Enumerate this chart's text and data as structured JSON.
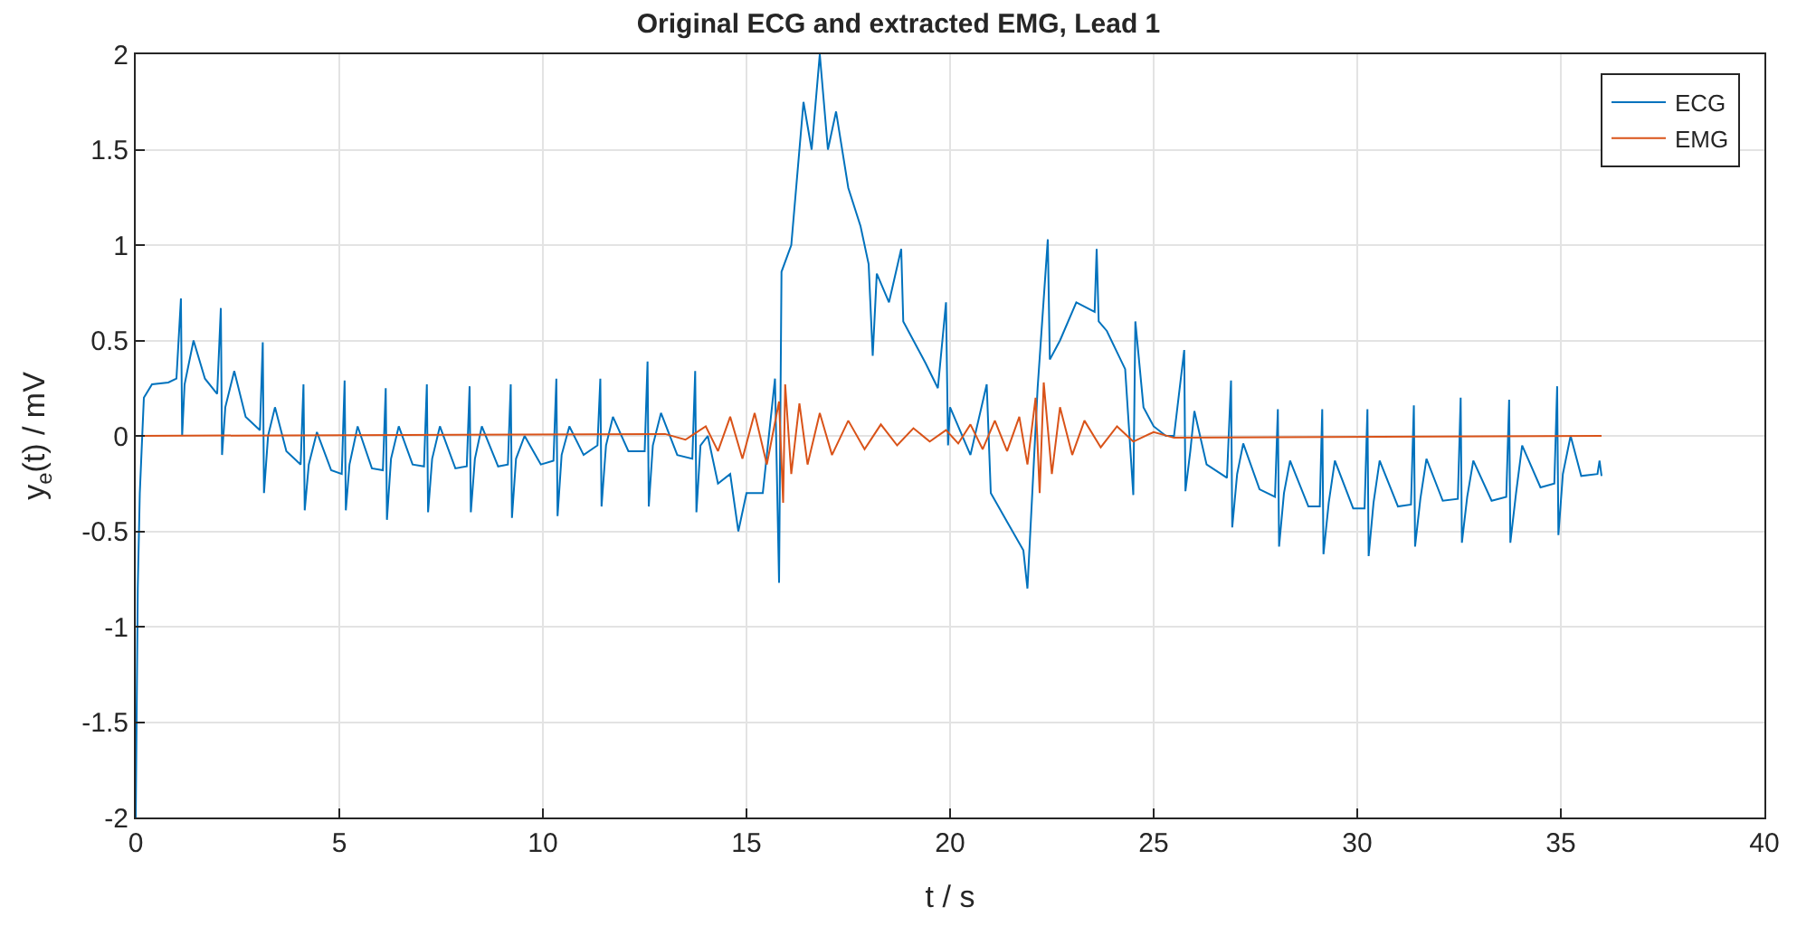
{
  "chart_data": {
    "type": "line",
    "title": "Original ECG and extracted EMG, Lead 1",
    "xlabel": "t / s",
    "ylabel": "y$_{e}$(t) / mV",
    "xlim": [
      0,
      40
    ],
    "xticks": [
      0,
      5,
      10,
      15,
      20,
      25,
      30,
      35,
      40
    ],
    "ylim": [
      -2,
      2
    ],
    "yticks": [
      -2,
      -1.5,
      -1,
      -0.5,
      0,
      0.5,
      1,
      1.5,
      2
    ],
    "grid": true,
    "legend": "top right",
    "marker": "none",
    "line_style": "solid",
    "series": [
      {
        "name": "ECG",
        "color": "#0072bd",
        "x": [
          0,
          0.05,
          0.1,
          0.2,
          0.4,
          0.8,
          1.0,
          1.11,
          1.14,
          1.2,
          1.42,
          1.7,
          2.0,
          2.09,
          2.12,
          2.2,
          2.42,
          2.7,
          3.05,
          3.12,
          3.15,
          3.25,
          3.42,
          3.7,
          4.05,
          4.12,
          4.15,
          4.25,
          4.45,
          4.8,
          5.06,
          5.13,
          5.16,
          5.25,
          5.45,
          5.8,
          6.07,
          6.14,
          6.17,
          6.27,
          6.46,
          6.8,
          7.08,
          7.15,
          7.18,
          7.28,
          7.47,
          7.85,
          8.13,
          8.2,
          8.23,
          8.33,
          8.5,
          8.9,
          9.14,
          9.21,
          9.24,
          9.34,
          9.55,
          9.95,
          10.26,
          10.33,
          10.36,
          10.46,
          10.65,
          11.0,
          11.34,
          11.41,
          11.44,
          11.55,
          11.72,
          12.1,
          12.5,
          12.57,
          12.6,
          12.7,
          12.9,
          13.3,
          13.67,
          13.74,
          13.77,
          13.87,
          14.05,
          14.3,
          14.6,
          14.8,
          15.0,
          15.4,
          15.7,
          15.8,
          15.86,
          16.1,
          16.4,
          16.6,
          16.8,
          17.0,
          17.2,
          17.5,
          17.8,
          18.0,
          18.1,
          18.2,
          18.5,
          18.8,
          18.85,
          19.1,
          19.4,
          19.7,
          19.9,
          19.95,
          20.0,
          20.5,
          20.9,
          21.0,
          21.4,
          21.8,
          21.9,
          22.15,
          22.4,
          22.45,
          22.7,
          23.1,
          23.55,
          23.6,
          23.65,
          23.85,
          24.3,
          24.5,
          24.55,
          24.75,
          25.0,
          25.3,
          25.5,
          25.75,
          25.78,
          25.9,
          26.0,
          26.3,
          26.8,
          26.9,
          26.93,
          27.05,
          27.2,
          27.6,
          27.98,
          28.05,
          28.08,
          28.2,
          28.35,
          28.8,
          29.08,
          29.14,
          29.17,
          29.3,
          29.45,
          29.9,
          30.18,
          30.25,
          30.28,
          30.4,
          30.55,
          31.0,
          31.32,
          31.39,
          31.42,
          31.55,
          31.7,
          32.1,
          32.47,
          32.54,
          32.57,
          32.7,
          32.85,
          33.3,
          33.66,
          33.73,
          33.76,
          33.9,
          34.05,
          34.5,
          34.84,
          34.91,
          34.94,
          35.05,
          35.24,
          35.5,
          35.9,
          35.95,
          36.0
        ],
        "values": [
          -2,
          -0.8,
          -0.3,
          0.2,
          0.27,
          0.28,
          0.3,
          0.72,
          0.0,
          0.27,
          0.5,
          0.3,
          0.22,
          0.67,
          -0.1,
          0.15,
          0.34,
          0.1,
          0.03,
          0.49,
          -0.3,
          0.0,
          0.15,
          -0.08,
          -0.15,
          0.27,
          -0.39,
          -0.15,
          0.02,
          -0.18,
          -0.2,
          0.29,
          -0.39,
          -0.15,
          0.05,
          -0.17,
          -0.18,
          0.25,
          -0.44,
          -0.12,
          0.05,
          -0.15,
          -0.16,
          0.27,
          -0.4,
          -0.12,
          0.05,
          -0.17,
          -0.16,
          0.26,
          -0.4,
          -0.12,
          0.05,
          -0.16,
          -0.15,
          0.27,
          -0.43,
          -0.12,
          0.0,
          -0.15,
          -0.13,
          0.3,
          -0.42,
          -0.1,
          0.05,
          -0.1,
          -0.05,
          0.3,
          -0.37,
          -0.05,
          0.1,
          -0.08,
          -0.08,
          0.39,
          -0.37,
          -0.05,
          0.12,
          -0.1,
          -0.12,
          0.34,
          -0.4,
          -0.05,
          0.0,
          -0.25,
          -0.2,
          -0.5,
          -0.3,
          -0.3,
          0.3,
          -0.77,
          0.86,
          1.0,
          1.75,
          1.5,
          2.0,
          1.5,
          1.7,
          1.3,
          1.1,
          0.9,
          0.42,
          0.85,
          0.7,
          0.98,
          0.6,
          0.5,
          0.38,
          0.25,
          0.7,
          -0.05,
          0.15,
          -0.1,
          0.27,
          -0.3,
          -0.45,
          -0.6,
          -0.8,
          0.25,
          1.03,
          0.4,
          0.5,
          0.7,
          0.65,
          0.98,
          0.6,
          0.55,
          0.35,
          -0.31,
          0.6,
          0.15,
          0.05,
          0.0,
          0.0,
          0.45,
          -0.29,
          -0.08,
          0.13,
          -0.15,
          -0.22,
          0.29,
          -0.48,
          -0.2,
          -0.04,
          -0.28,
          -0.32,
          0.14,
          -0.58,
          -0.3,
          -0.13,
          -0.37,
          -0.37,
          0.14,
          -0.62,
          -0.35,
          -0.13,
          -0.38,
          -0.38,
          0.14,
          -0.63,
          -0.35,
          -0.13,
          -0.37,
          -0.36,
          0.16,
          -0.58,
          -0.33,
          -0.12,
          -0.34,
          -0.33,
          0.2,
          -0.56,
          -0.32,
          -0.13,
          -0.34,
          -0.32,
          0.19,
          -0.56,
          -0.3,
          -0.05,
          -0.27,
          -0.25,
          0.26,
          -0.52,
          -0.2,
          0.0,
          -0.21,
          -0.2,
          -0.13,
          -0.21
        ]
      },
      {
        "name": "EMG",
        "color": "#d95319",
        "x": [
          0,
          13.0,
          13.5,
          14.0,
          14.3,
          14.6,
          14.9,
          15.2,
          15.5,
          15.8,
          15.9,
          15.95,
          16.1,
          16.3,
          16.5,
          16.8,
          17.1,
          17.5,
          17.9,
          18.3,
          18.7,
          19.1,
          19.5,
          19.9,
          20.2,
          20.5,
          20.8,
          21.1,
          21.4,
          21.7,
          21.9,
          22.1,
          22.2,
          22.3,
          22.5,
          22.7,
          23.0,
          23.3,
          23.7,
          24.1,
          24.5,
          25.0,
          25.5,
          36.0
        ],
        "values": [
          0,
          0.01,
          -0.02,
          0.05,
          -0.08,
          0.1,
          -0.12,
          0.12,
          -0.15,
          0.18,
          -0.35,
          0.27,
          -0.2,
          0.17,
          -0.15,
          0.12,
          -0.1,
          0.08,
          -0.07,
          0.06,
          -0.05,
          0.04,
          -0.03,
          0.03,
          -0.04,
          0.06,
          -0.07,
          0.08,
          -0.08,
          0.1,
          -0.15,
          0.2,
          -0.3,
          0.28,
          -0.2,
          0.15,
          -0.1,
          0.08,
          -0.06,
          0.05,
          -0.03,
          0.02,
          -0.01,
          0
        ]
      }
    ]
  }
}
